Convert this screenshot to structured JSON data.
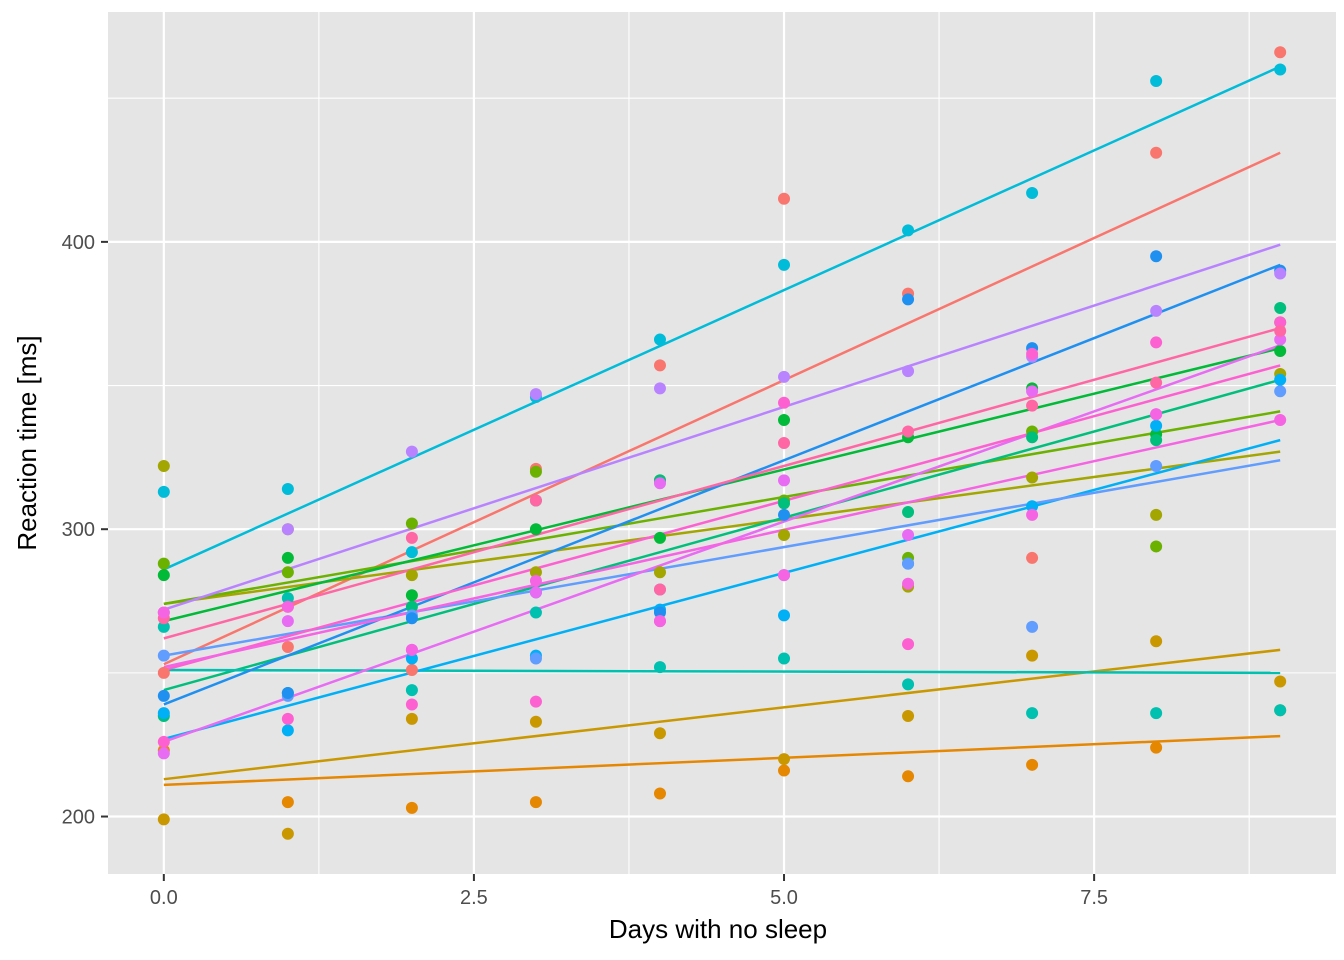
{
  "chart_data": {
    "type": "scatter",
    "title": "",
    "xlabel": "Days with no sleep",
    "ylabel": "Reaction time [ms]",
    "xlim": [
      -0.45,
      9.45
    ],
    "ylim": [
      180,
      480
    ],
    "x_ticks": [
      0,
      2.5,
      5,
      7.5
    ],
    "x_tick_labels": [
      "0.0",
      "2.5",
      "5.0",
      "7.5"
    ],
    "y_ticks": [
      200,
      300,
      400
    ],
    "y_tick_labels": [
      "200",
      "300",
      "400"
    ],
    "grid": true,
    "legend": "none",
    "panel_background": "#E5E5E5",
    "grid_color": "#FFFFFF",
    "days": [
      0,
      1,
      2,
      3,
      4,
      5,
      6,
      7,
      8,
      9
    ],
    "series": [
      {
        "color": "#F8766D",
        "values": [
          250,
          259,
          251,
          321,
          357,
          415,
          382,
          290,
          431,
          466
        ],
        "fit": [
          253,
          431
        ]
      },
      {
        "color": "#E58700",
        "values": [
          223,
          205,
          203,
          205,
          208,
          216,
          214,
          218,
          224,
          237
        ],
        "fit": [
          211,
          228
        ]
      },
      {
        "color": "#C99800",
        "values": [
          199,
          194,
          234,
          233,
          229,
          220,
          235,
          256,
          261,
          247
        ],
        "fit": [
          213,
          258
        ]
      },
      {
        "color": "#A3A500",
        "values": [
          322,
          300,
          284,
          285,
          285,
          298,
          280,
          318,
          305,
          354
        ],
        "fit": [
          274,
          327
        ]
      },
      {
        "color": "#6BB100",
        "values": [
          288,
          285,
          302,
          320,
          317,
          310,
          290,
          334,
          294,
          372
        ],
        "fit": [
          274,
          341
        ]
      },
      {
        "color": "#00BA38",
        "values": [
          284,
          290,
          277,
          300,
          297,
          338,
          332,
          349,
          333,
          362
        ],
        "fit": [
          268,
          363
        ]
      },
      {
        "color": "#00BF7D",
        "values": [
          235,
          243,
          273,
          310,
          317,
          309,
          306,
          332,
          331,
          377
        ],
        "fit": [
          244,
          352
        ]
      },
      {
        "color": "#00C0AF",
        "values": [
          266,
          276,
          244,
          271,
          252,
          255,
          246,
          236,
          236,
          237
        ],
        "fit": [
          251,
          250
        ]
      },
      {
        "color": "#00BCD8",
        "values": [
          313,
          314,
          292,
          346,
          366,
          392,
          404,
          417,
          456,
          460
        ],
        "fit": [
          286,
          461
        ]
      },
      {
        "color": "#00B0F6",
        "values": [
          236,
          230,
          255,
          256,
          272,
          270,
          288,
          308,
          336,
          352
        ],
        "fit": [
          227,
          331
        ]
      },
      {
        "color": "#619CFF",
        "values": [
          256,
          242,
          270,
          255,
          279,
          284,
          288,
          266,
          322,
          348
        ],
        "fit": [
          256,
          324
        ]
      },
      {
        "color": "#1F90F0",
        "values": [
          242,
          243,
          269,
          278,
          271,
          305,
          380,
          363,
          395,
          390
        ],
        "fit": [
          239,
          392
        ]
      },
      {
        "color": "#B983FF",
        "values": [
          271,
          300,
          327,
          347,
          349,
          353,
          355,
          360,
          376,
          389
        ],
        "fit": [
          272,
          399
        ]
      },
      {
        "color": "#E76BF3",
        "values": [
          222,
          268,
          258,
          278,
          316,
          317,
          298,
          348,
          340,
          366
        ],
        "fit": [
          226,
          364
        ]
      },
      {
        "color": "#FD61D1",
        "values": [
          226,
          234,
          239,
          240,
          268,
          344,
          260,
          361,
          365,
          372
        ],
        "fit": [
          251,
          357
        ]
      },
      {
        "color": "#FF67A4",
        "values": [
          269,
          273,
          297,
          310,
          279,
          330,
          334,
          343,
          351,
          369
        ],
        "fit": [
          262,
          370
        ]
      },
      {
        "color": "#F564E3",
        "values": [
          271,
          273,
          258,
          282,
          268,
          284,
          281,
          305,
          340,
          338
        ],
        "fit": [
          252,
          338
        ]
      }
    ]
  }
}
